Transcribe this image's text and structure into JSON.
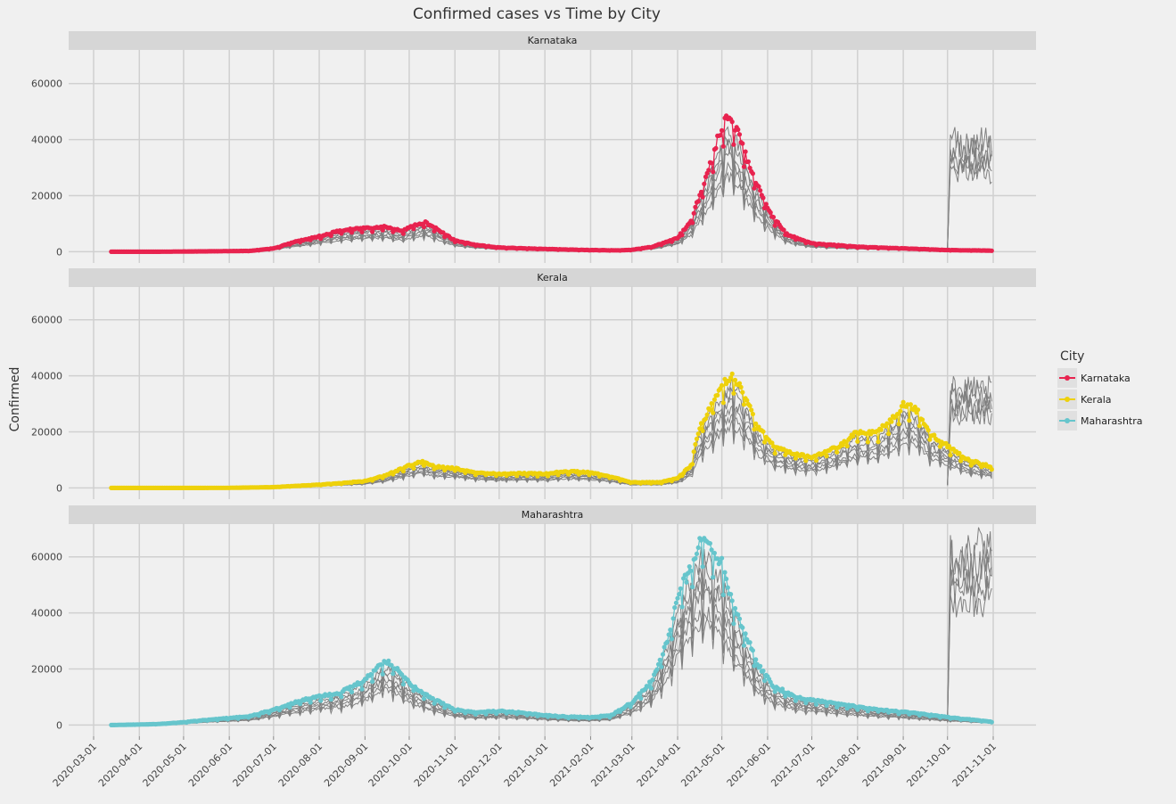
{
  "chart_data": {
    "type": "line",
    "title": "Confirmed cases vs Time by City",
    "xlabel": "",
    "ylabel": "Confirmed",
    "ylim": [
      -4000,
      72000
    ],
    "y_ticks": [
      0,
      20000,
      40000,
      60000
    ],
    "x_ticks": [
      "2020-03-01",
      "2020-04-01",
      "2020-05-01",
      "2020-06-01",
      "2020-07-01",
      "2020-08-01",
      "2020-09-01",
      "2020-10-01",
      "2020-11-01",
      "2020-12-01",
      "2021-01-01",
      "2021-02-01",
      "2021-03-01",
      "2021-04-01",
      "2021-05-01",
      "2021-06-01",
      "2021-07-01",
      "2021-08-01",
      "2021-09-01",
      "2021-10-01",
      "2021-11-01"
    ],
    "grid": true,
    "legend": {
      "title": "City",
      "placement": "right"
    },
    "facets": [
      "Karnataka",
      "Kerala",
      "Maharashtra"
    ],
    "background_series_note": "",
    "series": [
      {
        "name": "Karnataka",
        "color": "#e8234f",
        "points": [
          [
            "2020-03-13",
            0
          ],
          [
            "2020-04-15",
            20
          ],
          [
            "2020-05-15",
            150
          ],
          [
            "2020-06-15",
            300
          ],
          [
            "2020-07-01",
            1200
          ],
          [
            "2020-07-15",
            3500
          ],
          [
            "2020-08-01",
            5500
          ],
          [
            "2020-08-15",
            7500
          ],
          [
            "2020-09-01",
            8500
          ],
          [
            "2020-09-15",
            9000
          ],
          [
            "2020-09-25",
            7500
          ],
          [
            "2020-10-05",
            9500
          ],
          [
            "2020-10-12",
            10500
          ],
          [
            "2020-10-20",
            8000
          ],
          [
            "2020-11-01",
            4000
          ],
          [
            "2020-11-15",
            2500
          ],
          [
            "2020-12-01",
            1500
          ],
          [
            "2021-01-01",
            1000
          ],
          [
            "2021-02-01",
            600
          ],
          [
            "2021-02-20",
            500
          ],
          [
            "2021-03-01",
            700
          ],
          [
            "2021-03-15",
            1800
          ],
          [
            "2021-04-01",
            5000
          ],
          [
            "2021-04-10",
            11000
          ],
          [
            "2021-04-20",
            26000
          ],
          [
            "2021-04-28",
            40000
          ],
          [
            "2021-05-05",
            49000
          ],
          [
            "2021-05-10",
            45000
          ],
          [
            "2021-05-15",
            38000
          ],
          [
            "2021-05-20",
            30000
          ],
          [
            "2021-05-28",
            20000
          ],
          [
            "2021-06-05",
            12000
          ],
          [
            "2021-06-15",
            6000
          ],
          [
            "2021-07-01",
            3000
          ],
          [
            "2021-08-01",
            1800
          ],
          [
            "2021-09-01",
            1200
          ],
          [
            "2021-10-01",
            600
          ],
          [
            "2021-10-31",
            400
          ]
        ]
      },
      {
        "name": "Kerala",
        "color": "#eed10b",
        "points": [
          [
            "2020-03-13",
            0
          ],
          [
            "2020-05-01",
            0
          ],
          [
            "2020-06-01",
            50
          ],
          [
            "2020-07-01",
            300
          ],
          [
            "2020-07-15",
            700
          ],
          [
            "2020-08-01",
            1200
          ],
          [
            "2020-08-15",
            1700
          ],
          [
            "2020-09-01",
            2500
          ],
          [
            "2020-09-15",
            4500
          ],
          [
            "2020-10-01",
            8000
          ],
          [
            "2020-10-10",
            9500
          ],
          [
            "2020-10-20",
            7500
          ],
          [
            "2020-11-01",
            7000
          ],
          [
            "2020-11-15",
            5500
          ],
          [
            "2020-12-01",
            5000
          ],
          [
            "2020-12-15",
            5200
          ],
          [
            "2021-01-01",
            5000
          ],
          [
            "2021-01-15",
            6000
          ],
          [
            "2021-02-01",
            5500
          ],
          [
            "2021-02-15",
            4000
          ],
          [
            "2021-03-01",
            2000
          ],
          [
            "2021-03-20",
            2000
          ],
          [
            "2021-04-01",
            3500
          ],
          [
            "2021-04-10",
            8000
          ],
          [
            "2021-04-15",
            20000
          ],
          [
            "2021-04-22",
            28000
          ],
          [
            "2021-05-01",
            36000
          ],
          [
            "2021-05-08",
            41000
          ],
          [
            "2021-05-15",
            35000
          ],
          [
            "2021-05-25",
            22000
          ],
          [
            "2021-06-05",
            15000
          ],
          [
            "2021-06-20",
            12000
          ],
          [
            "2021-07-01",
            11000
          ],
          [
            "2021-07-20",
            15000
          ],
          [
            "2021-08-01",
            20000
          ],
          [
            "2021-08-15",
            20000
          ],
          [
            "2021-08-25",
            25000
          ],
          [
            "2021-09-01",
            30000
          ],
          [
            "2021-09-10",
            28000
          ],
          [
            "2021-09-20",
            19000
          ],
          [
            "2021-10-01",
            15000
          ],
          [
            "2021-10-15",
            10000
          ],
          [
            "2021-10-31",
            7500
          ]
        ]
      },
      {
        "name": "Maharashtra",
        "color": "#66c5cc",
        "points": [
          [
            "2020-03-13",
            0
          ],
          [
            "2020-04-01",
            200
          ],
          [
            "2020-04-15",
            400
          ],
          [
            "2020-05-01",
            1000
          ],
          [
            "2020-05-15",
            1800
          ],
          [
            "2020-06-01",
            2500
          ],
          [
            "2020-06-15",
            3200
          ],
          [
            "2020-07-01",
            5500
          ],
          [
            "2020-07-15",
            8000
          ],
          [
            "2020-08-01",
            10500
          ],
          [
            "2020-08-15",
            11500
          ],
          [
            "2020-09-01",
            16000
          ],
          [
            "2020-09-10",
            21000
          ],
          [
            "2020-09-15",
            23000
          ],
          [
            "2020-09-25",
            19000
          ],
          [
            "2020-10-01",
            15000
          ],
          [
            "2020-10-15",
            10000
          ],
          [
            "2020-11-01",
            5500
          ],
          [
            "2020-11-15",
            4500
          ],
          [
            "2020-12-01",
            5000
          ],
          [
            "2020-12-15",
            4500
          ],
          [
            "2021-01-01",
            3500
          ],
          [
            "2021-01-15",
            3000
          ],
          [
            "2021-02-01",
            2800
          ],
          [
            "2021-02-15",
            3500
          ],
          [
            "2021-03-01",
            8000
          ],
          [
            "2021-03-15",
            16000
          ],
          [
            "2021-03-25",
            30000
          ],
          [
            "2021-04-01",
            45000
          ],
          [
            "2021-04-10",
            57000
          ],
          [
            "2021-04-18",
            67000
          ],
          [
            "2021-04-25",
            63000
          ],
          [
            "2021-05-01",
            58000
          ],
          [
            "2021-05-08",
            45000
          ],
          [
            "2021-05-15",
            35000
          ],
          [
            "2021-05-25",
            22000
          ],
          [
            "2021-06-05",
            14000
          ],
          [
            "2021-06-20",
            10000
          ],
          [
            "2021-07-01",
            9000
          ],
          [
            "2021-08-01",
            6500
          ],
          [
            "2021-08-15",
            5500
          ],
          [
            "2021-08-30",
            4800
          ],
          [
            "2021-09-10",
            4200
          ],
          [
            "2021-10-01",
            2800
          ],
          [
            "2021-10-31",
            1200
          ]
        ]
      }
    ]
  }
}
